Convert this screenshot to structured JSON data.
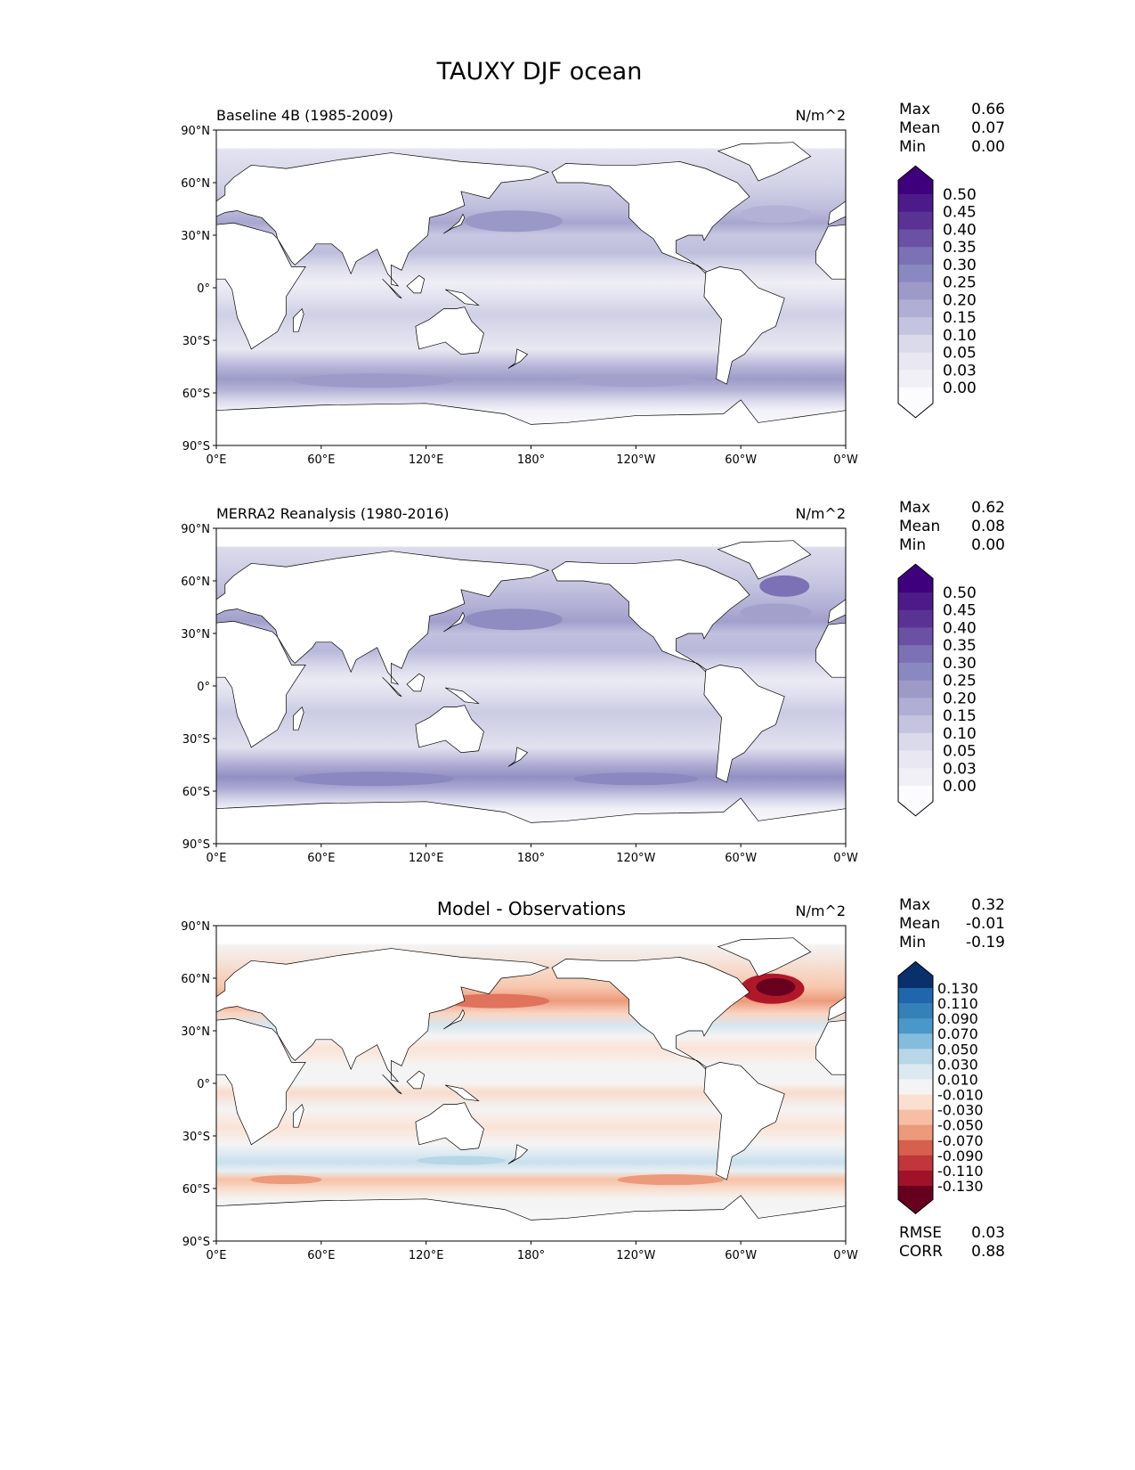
{
  "figure_title": "TAUXY DJF ocean",
  "chart_data": [
    {
      "type": "heatmap",
      "title": "Baseline 4B (1985-2009)",
      "title_position": "left",
      "units": "N/m^2",
      "stats": [
        {
          "label": "Max",
          "value": "0.66"
        },
        {
          "label": "Mean",
          "value": "0.07"
        },
        {
          "label": "Min",
          "value": "0.00"
        }
      ],
      "colorbar": {
        "labels": [
          "0.50",
          "0.45",
          "0.40",
          "0.35",
          "0.30",
          "0.25",
          "0.20",
          "0.15",
          "0.10",
          "0.05",
          "0.03",
          "0.00"
        ],
        "ext_max_color": "#3f007d",
        "colors": [
          "#4d1a89",
          "#5a3294",
          "#6a51a3",
          "#7b71b4",
          "#8a88c0",
          "#9e9ac8",
          "#b0aed4",
          "#c4c4e0",
          "#dadaeb",
          "#e8e7f2",
          "#f2f0f7"
        ],
        "ext_min_color": "#fcfbfd"
      },
      "field": "purple"
    },
    {
      "type": "heatmap",
      "title": "MERRA2 Reanalysis (1980-2016)",
      "title_position": "left",
      "units": "N/m^2",
      "stats": [
        {
          "label": "Max",
          "value": "0.62"
        },
        {
          "label": "Mean",
          "value": "0.08"
        },
        {
          "label": "Min",
          "value": "0.00"
        }
      ],
      "colorbar": {
        "labels": [
          "0.50",
          "0.45",
          "0.40",
          "0.35",
          "0.30",
          "0.25",
          "0.20",
          "0.15",
          "0.10",
          "0.05",
          "0.03",
          "0.00"
        ],
        "ext_max_color": "#3f007d",
        "colors": [
          "#4d1a89",
          "#5a3294",
          "#6a51a3",
          "#7b71b4",
          "#8a88c0",
          "#9e9ac8",
          "#b0aed4",
          "#c4c4e0",
          "#dadaeb",
          "#e8e7f2",
          "#f2f0f7"
        ],
        "ext_min_color": "#fcfbfd"
      },
      "field": "purple2"
    },
    {
      "type": "heatmap",
      "title": "Model - Observations",
      "title_position": "center",
      "units": "N/m^2",
      "stats": [
        {
          "label": "Max",
          "value": "0.32"
        },
        {
          "label": "Mean",
          "value": "-0.01"
        },
        {
          "label": "Min",
          "value": "-0.19"
        }
      ],
      "extra_stats": [
        {
          "label": "RMSE",
          "value": "0.03"
        },
        {
          "label": "CORR",
          "value": "0.88"
        }
      ],
      "colorbar": {
        "labels": [
          "0.130",
          "0.110",
          "0.090",
          "0.070",
          "0.050",
          "0.030",
          "0.010",
          "-0.010",
          "-0.030",
          "-0.050",
          "-0.070",
          "-0.090",
          "-0.110",
          "-0.130"
        ],
        "ext_max_color": "#08306b",
        "colors": [
          "#2166ac",
          "#3480b9",
          "#4a98c9",
          "#84bcdb",
          "#b7d6e8",
          "#dbe9f1",
          "#f4f4f4",
          "#fbe0d2",
          "#f7bea3",
          "#ec9a7b",
          "#d6604d",
          "#c0363a",
          "#a11228"
        ],
        "ext_min_color": "#67001f"
      },
      "field": "diff"
    }
  ],
  "axes": {
    "xticks": [
      "0°E",
      "60°E",
      "120°E",
      "180°",
      "120°W",
      "60°W",
      "0°W"
    ],
    "yticks": [
      "90°N",
      "60°N",
      "30°N",
      "0°",
      "30°S",
      "60°S",
      "90°S"
    ],
    "xlim": [
      0,
      360
    ],
    "ylim": [
      -90,
      90
    ]
  }
}
